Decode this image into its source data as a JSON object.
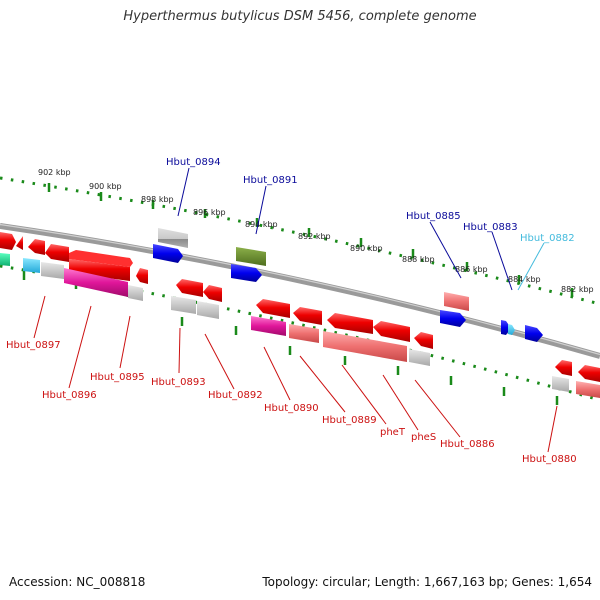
{
  "title": "Hyperthermus butylicus DSM 5456, complete genome",
  "footer": {
    "accession": "Accession: NC_008818",
    "stats": "Topology: circular; Length: 1,667,163 bp; Genes: 1,654"
  },
  "colors": {
    "top_label": "#0a0a9a",
    "bottom_label": "#cc1111",
    "cyan_label": "#44bbdd",
    "backbone": "#888888",
    "dots": "#1a8a1a"
  },
  "kbp_labels": [
    "902 kbp",
    "900 kbp",
    "898 kbp",
    "896 kbp",
    "894 kbp",
    "892 kbp",
    "890 kbp",
    "888 kbp",
    "886 kbp",
    "884 kbp",
    "882 kbp"
  ],
  "top_labels": [
    "Hbut_0894",
    "Hbut_0891",
    "Hbut_0885",
    "Hbut_0883",
    "Hbut_0882"
  ],
  "bottom_labels": [
    "Hbut_0897",
    "Hbut_0896",
    "Hbut_0895",
    "Hbut_0893",
    "Hbut_0892",
    "Hbut_0890",
    "Hbut_0889",
    "pheT",
    "pheS",
    "Hbut_0886",
    "Hbut_0880"
  ]
}
